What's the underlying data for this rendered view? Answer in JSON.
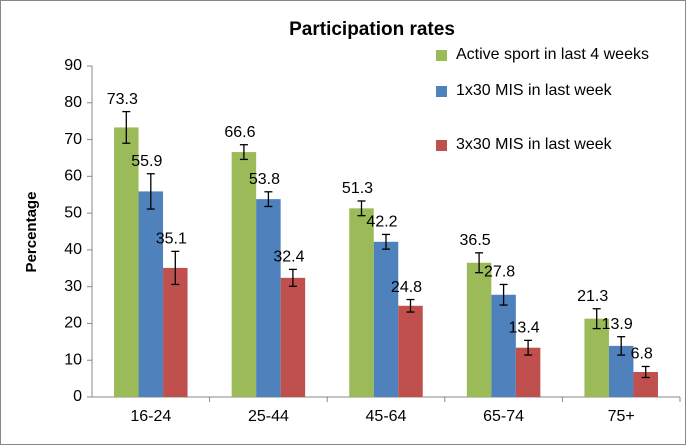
{
  "chart_data": {
    "type": "bar",
    "title": "Participation rates",
    "y_label": "Percentage",
    "categories": [
      "16-24",
      "25-44",
      "45-64",
      "65-74",
      "75+"
    ],
    "series": [
      {
        "name": "Active sport in last 4 weeks",
        "color": "#9bbb59",
        "values": [
          73.3,
          66.6,
          51.3,
          36.5,
          21.3
        ],
        "errors": [
          4.3,
          2.0,
          2.0,
          2.7,
          2.7
        ]
      },
      {
        "name": "1x30 MIS in last week",
        "color": "#4f81bd",
        "values": [
          55.9,
          53.8,
          42.2,
          27.8,
          13.9
        ],
        "errors": [
          4.8,
          2.0,
          2.0,
          2.8,
          2.5
        ]
      },
      {
        "name": "3x30 MIS in last week",
        "color": "#c0504d",
        "values": [
          35.1,
          32.4,
          24.8,
          13.4,
          6.8
        ],
        "errors": [
          4.5,
          2.3,
          1.7,
          2.0,
          1.5
        ]
      }
    ],
    "ylim": [
      0,
      90
    ],
    "yticks": [
      0,
      10,
      20,
      30,
      40,
      50,
      60,
      70,
      80,
      90
    ],
    "grid": false,
    "legend": "top-right"
  }
}
